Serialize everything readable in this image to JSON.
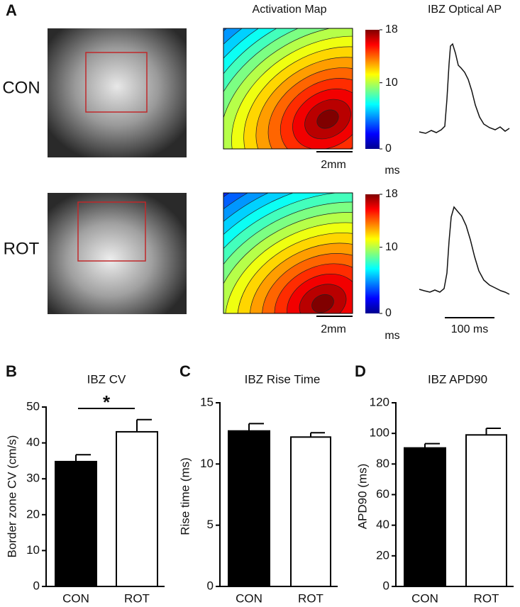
{
  "panel_a": {
    "letter": "A",
    "column_titles": [
      "Activation Map",
      "IBZ Optical AP"
    ],
    "row_labels": [
      "CON",
      "ROT"
    ],
    "colorbar": {
      "range": [
        0,
        18
      ],
      "ticks": [
        0,
        10,
        18
      ],
      "unit": "ms"
    },
    "map_scale_bar": "2mm",
    "trace_scale_bar": "100 ms"
  },
  "chart_data": [
    {
      "type": "bar",
      "letter": "B",
      "title": "IBZ CV",
      "y_label": "Border zone CV (cm/s)",
      "categories": [
        "CON",
        "ROT"
      ],
      "values": [
        34.8,
        43.1
      ],
      "errors": [
        1.9,
        3.4
      ],
      "colors": [
        "#000000",
        "#ffffff"
      ],
      "ylim": [
        0,
        50
      ],
      "yticks": [
        0,
        10,
        20,
        30,
        40,
        50
      ],
      "annotation": "*"
    },
    {
      "type": "bar",
      "letter": "C",
      "title": "IBZ Rise Time",
      "y_label": "Rise time (ms)",
      "categories": [
        "CON",
        "ROT"
      ],
      "values": [
        12.7,
        12.2
      ],
      "errors": [
        0.6,
        0.35
      ],
      "colors": [
        "#000000",
        "#ffffff"
      ],
      "ylim": [
        0,
        15
      ],
      "yticks": [
        0,
        5,
        10,
        15
      ]
    },
    {
      "type": "bar",
      "letter": "D",
      "title": "IBZ APD90",
      "y_label": "APD90 (ms)",
      "categories": [
        "CON",
        "ROT"
      ],
      "values": [
        90.5,
        99
      ],
      "errors": [
        2.8,
        4.3
      ],
      "colors": [
        "#000000",
        "#ffffff"
      ],
      "ylim": [
        0,
        120
      ],
      "yticks": [
        0,
        20,
        40,
        60,
        80,
        100,
        120
      ]
    }
  ]
}
